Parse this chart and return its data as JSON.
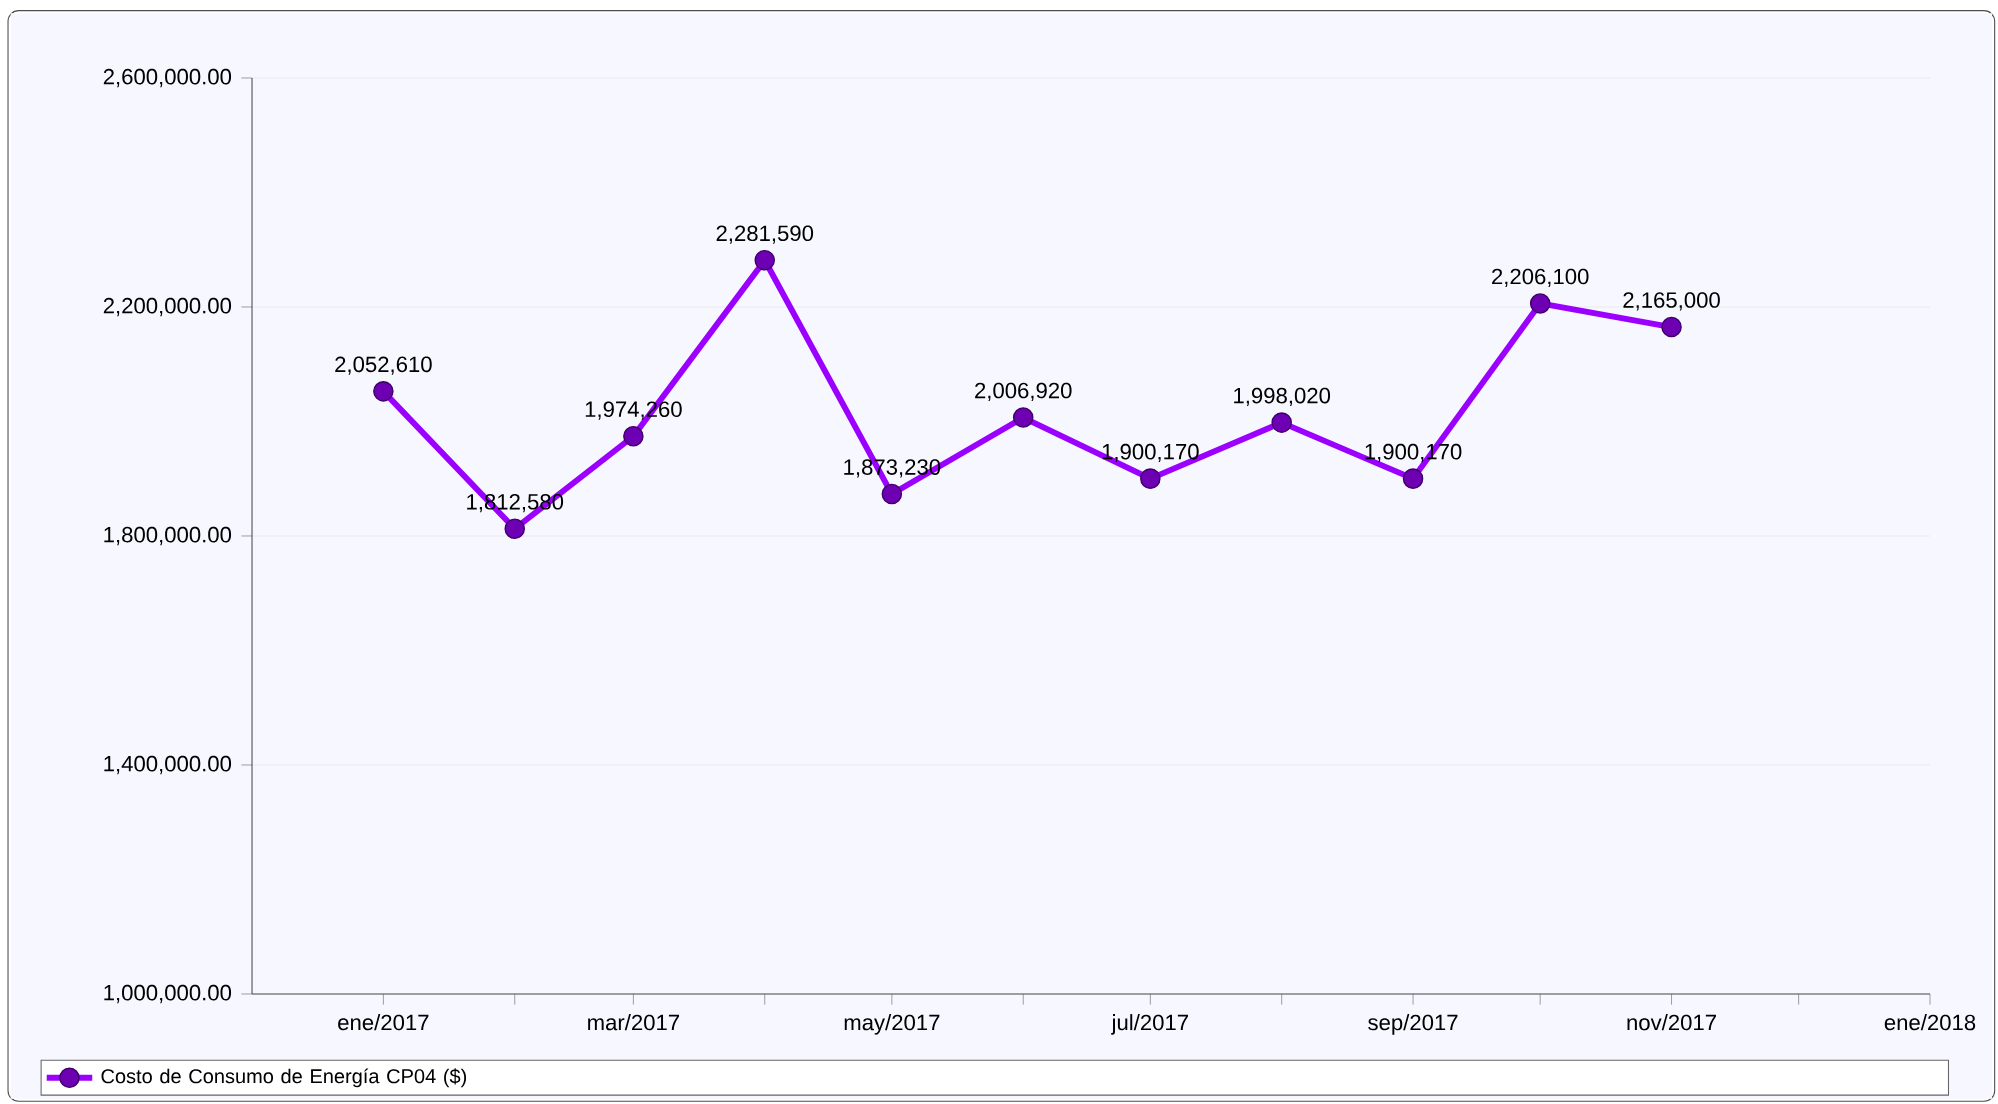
{
  "chart_data": {
    "type": "line",
    "x": [
      "2017-01",
      "2017-02",
      "2017-03",
      "2017-04",
      "2017-05",
      "2017-06",
      "2017-07",
      "2017-08",
      "2017-09",
      "2017-10",
      "2017-11"
    ],
    "series": [
      {
        "name": "Costo de Consumo de Energía CP04 ($)",
        "color": "#9b00ff",
        "values": [
          2052610,
          1812580,
          1974260,
          2281590,
          1873230,
          2006920,
          1900170,
          1998020,
          1900170,
          2206100,
          2165000
        ],
        "value_labels": [
          "2,052,610",
          "1,812,580",
          "1,974,260",
          "2,281,590",
          "1,873,230",
          "2,006,920",
          "1,900,170",
          "1,998,020",
          "1,900,170",
          "2,206,100",
          "2,165,000"
        ]
      }
    ],
    "xlim": [
      "2016-12",
      "2018-01"
    ],
    "xticks": [
      {
        "value": "2017-01",
        "label": "ene/2017"
      },
      {
        "value": "2017-02",
        "label": null
      },
      {
        "value": "2017-03",
        "label": "mar/2017"
      },
      {
        "value": "2017-04",
        "label": null
      },
      {
        "value": "2017-05",
        "label": "may/2017"
      },
      {
        "value": "2017-06",
        "label": null
      },
      {
        "value": "2017-07",
        "label": "jul/2017"
      },
      {
        "value": "2017-08",
        "label": null
      },
      {
        "value": "2017-09",
        "label": "sep/2017"
      },
      {
        "value": "2017-10",
        "label": null
      },
      {
        "value": "2017-11",
        "label": "nov/2017"
      },
      {
        "value": "2017-12",
        "label": null
      },
      {
        "value": "2018-01",
        "label": "ene/2018"
      }
    ],
    "ylim": [
      1000000,
      2600000
    ],
    "yticks": [
      {
        "value": 1000000,
        "label": "1,000,000.00"
      },
      {
        "value": 1400000,
        "label": "1,400,000.00"
      },
      {
        "value": 1800000,
        "label": "1,800,000.00"
      },
      {
        "value": 2200000,
        "label": "2,200,000.00"
      },
      {
        "value": 2600000,
        "label": "2,600,000.00"
      }
    ],
    "grid": "y",
    "legend": "bottom",
    "marker": "circle",
    "line_style": "solid"
  }
}
